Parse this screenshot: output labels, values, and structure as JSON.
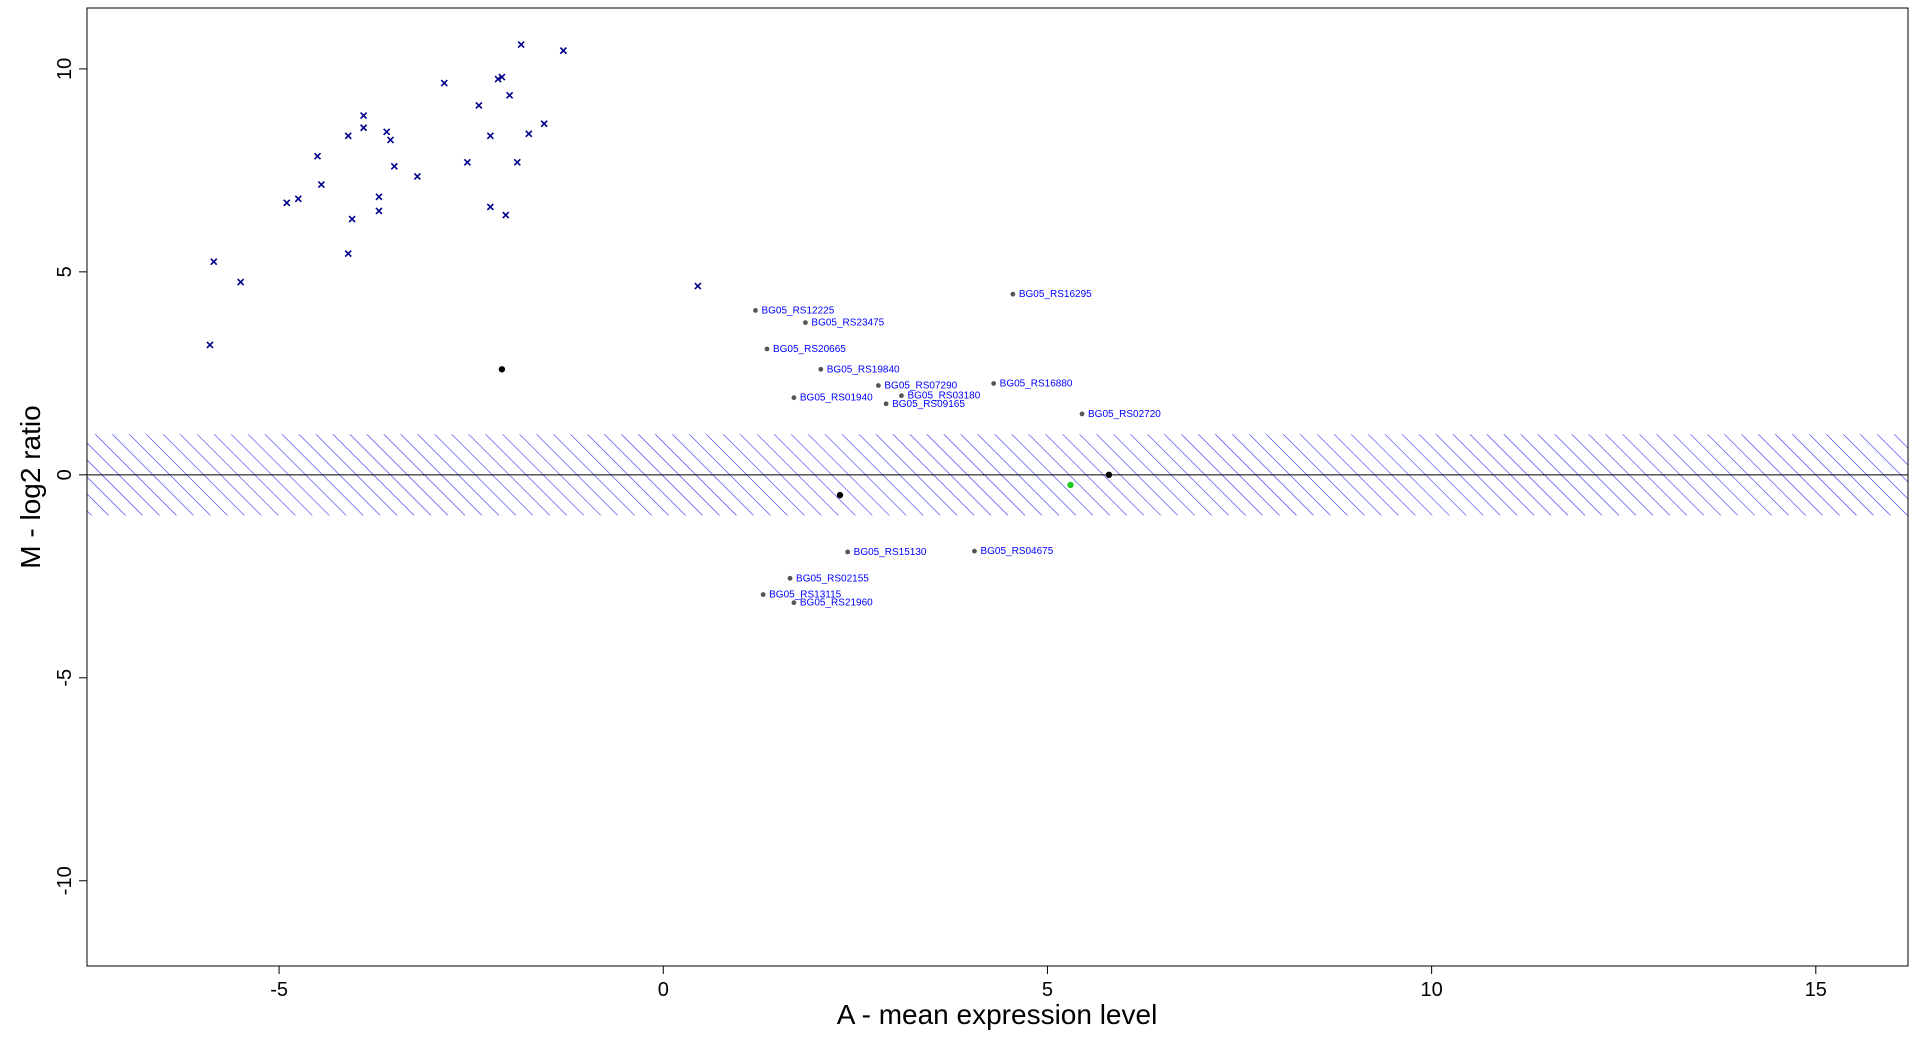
{
  "chart_data": {
    "type": "scatter",
    "title": "",
    "xlabel": "A - mean expression level",
    "ylabel": "M - log2 ratio",
    "xlim": [
      -7.5,
      16.2
    ],
    "ylim": [
      -12.1,
      11.5
    ],
    "x_ticks": [
      -5,
      0,
      5,
      10,
      15
    ],
    "y_ticks": [
      -10,
      -5,
      0,
      5,
      10
    ],
    "x_tick_labels": [
      "-5",
      "0",
      "5",
      "10",
      "15"
    ],
    "y_tick_labels": [
      "-10",
      "-5",
      "0",
      "5",
      "10"
    ],
    "band": {
      "ymin": -1,
      "ymax": 1,
      "fill": "hatched",
      "color": "#0000ff"
    },
    "zero_line": 0,
    "colors": {
      "points": "#555555",
      "outlier_markers": "#00008b",
      "labels": "#0000ff",
      "band": "#0000ff",
      "highlight": "#000000",
      "green_point": "#22cc22"
    },
    "series": [
      {
        "marker": "x",
        "points": [
          [
            -5.9,
            3.2
          ],
          [
            -5.85,
            5.25
          ],
          [
            -5.5,
            4.75
          ],
          [
            -4.9,
            6.7
          ],
          [
            -4.75,
            6.8
          ],
          [
            -4.5,
            7.85
          ],
          [
            -4.45,
            7.15
          ],
          [
            -4.1,
            8.35
          ],
          [
            -4.1,
            5.45
          ],
          [
            -4.05,
            6.3
          ],
          [
            -3.9,
            8.55
          ],
          [
            -3.9,
            8.85
          ],
          [
            -3.7,
            6.85
          ],
          [
            -3.7,
            6.5
          ],
          [
            -3.6,
            8.45
          ],
          [
            -3.55,
            8.25
          ],
          [
            -3.5,
            7.6
          ],
          [
            -3.2,
            7.35
          ],
          [
            -2.85,
            9.65
          ],
          [
            -2.55,
            7.7
          ],
          [
            -2.4,
            9.1
          ],
          [
            -2.25,
            8.35
          ],
          [
            -2.25,
            6.6
          ],
          [
            -2.15,
            9.75
          ],
          [
            -2.1,
            9.8
          ],
          [
            -2.05,
            6.4
          ],
          [
            -2.0,
            9.35
          ],
          [
            -1.9,
            7.7
          ],
          [
            -1.85,
            10.6
          ],
          [
            -1.75,
            8.4
          ],
          [
            -1.55,
            8.65
          ],
          [
            -1.3,
            10.45
          ],
          [
            0.45,
            4.65
          ]
        ]
      }
    ],
    "labeled_points": [
      {
        "label": "BG05_RS16295",
        "x": 4.55,
        "y": 4.45
      },
      {
        "label": "BG05_RS12225",
        "x": 1.2,
        "y": 4.05
      },
      {
        "label": "BG05_RS23475",
        "x": 1.85,
        "y": 3.75
      },
      {
        "label": "BG05_RS20665",
        "x": 1.35,
        "y": 3.1
      },
      {
        "label": "BG05_RS19840",
        "x": 2.05,
        "y": 2.6
      },
      {
        "label": "BG05_RS16880",
        "x": 4.3,
        "y": 2.25
      },
      {
        "label": "BG05_RS07290",
        "x": 2.8,
        "y": 2.2
      },
      {
        "label": "BG05_RS03180",
        "x": 3.1,
        "y": 1.95
      },
      {
        "label": "BG05_RS09165",
        "x": 2.9,
        "y": 1.75
      },
      {
        "label": "BG05_RS01940",
        "x": 1.7,
        "y": 1.9
      },
      {
        "label": "BG05_RS02720",
        "x": 5.45,
        "y": 1.5
      },
      {
        "label": "BG05_RS15130",
        "x": 2.4,
        "y": -1.9
      },
      {
        "label": "BG05_RS04675",
        "x": 4.05,
        "y": -1.88
      },
      {
        "label": "BG05_RS02155",
        "x": 1.65,
        "y": -2.55
      },
      {
        "label": "BG05_RS13115",
        "x": 1.3,
        "y": -2.95
      },
      {
        "label": "BG05_RS21960",
        "x": 1.7,
        "y": -3.15
      }
    ],
    "highlight_points": [
      [
        -2.1,
        2.6
      ],
      [
        2.3,
        -0.5
      ],
      [
        5.8,
        0.0
      ],
      [
        5.3,
        -0.25
      ]
    ]
  }
}
